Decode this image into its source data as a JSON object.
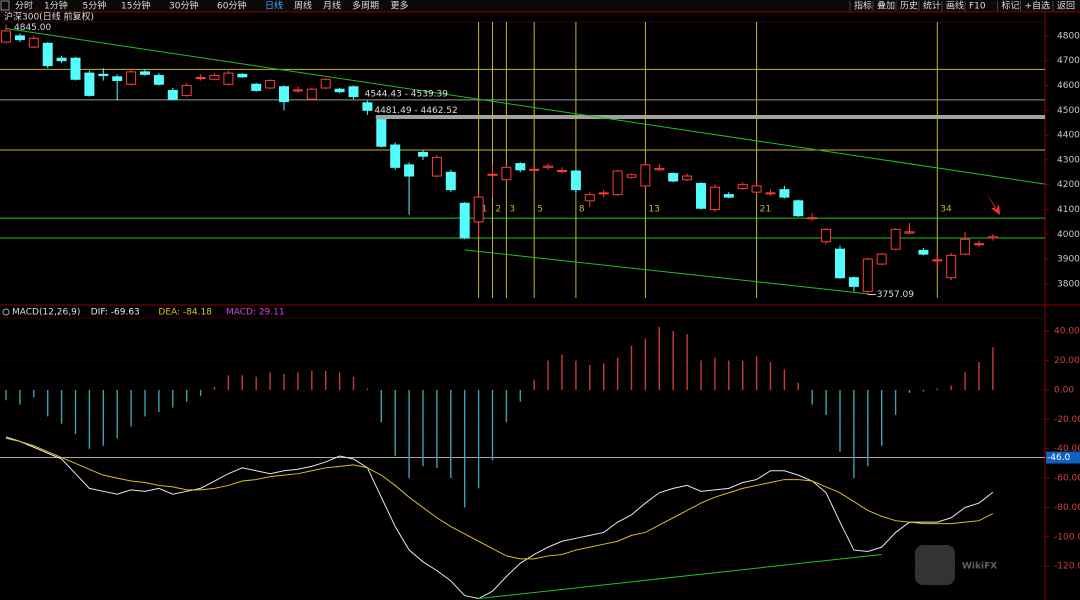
{
  "toolbar": {
    "periods": [
      "分时",
      "1分钟",
      "5分钟",
      "15分钟",
      "30分钟",
      "60分钟",
      "日线",
      "周线",
      "月线",
      "多周期",
      "更多"
    ],
    "active_index": 6,
    "tools": [
      "指标",
      "叠加",
      "历史",
      "统计",
      "画线",
      "F10",
      "标记",
      "+自选",
      "返回"
    ]
  },
  "watermark": "WikiFX",
  "chart_data": [
    {
      "type": "candlestick",
      "title": "沪深300(日线 前复权)",
      "ylim": [
        3727,
        4856
      ],
      "yticks": [
        3800,
        3900,
        4000,
        4100,
        4200,
        4300,
        4400,
        4500,
        4600,
        4700,
        4800
      ],
      "grid": true,
      "up_color": "#ff3c3c",
      "down_color": "#54fcfc",
      "open": [
        4775,
        4800,
        4755,
        4770,
        4710,
        4710,
        4650,
        4645,
        4635,
        4605,
        4655,
        4640,
        4580,
        4560,
        4630,
        4625,
        4605,
        4645,
        4605,
        4590,
        4595,
        4580,
        4545,
        4590,
        4585,
        4595,
        4530,
        4462.52,
        4360,
        4280,
        4330,
        4235,
        4250,
        4125,
        4050,
        4240,
        4220,
        4285,
        4260,
        4270,
        4255,
        4255,
        4135,
        4165,
        4160,
        4230,
        4195,
        4260,
        4245,
        4220,
        4205,
        4100,
        4160,
        4185,
        4170,
        4165,
        4180,
        4135,
        4065,
        3970,
        3940,
        3825,
        3770,
        3880,
        3940,
        4005,
        3935,
        3895,
        3825,
        3920,
        3960,
        3985
      ],
      "high": [
        4845,
        4810,
        4800,
        4775,
        4720,
        4715,
        4660,
        4670,
        4645,
        4665,
        4665,
        4650,
        4590,
        4610,
        4645,
        4650,
        4660,
        4650,
        4610,
        4625,
        4600,
        4595,
        4590,
        4630,
        4590,
        4600,
        4539.39,
        4462.52,
        4370,
        4290,
        4340,
        4320,
        4260,
        4130,
        4165,
        4280,
        4280,
        4290,
        4275,
        4285,
        4270,
        4260,
        4170,
        4180,
        4260,
        4245,
        4285,
        4285,
        4250,
        4245,
        4210,
        4200,
        4170,
        4210,
        4210,
        4180,
        4195,
        4140,
        4085,
        4025,
        3955,
        3830,
        3905,
        3925,
        4025,
        4045,
        3945,
        3920,
        3925,
        4010,
        3975,
        4000
      ],
      "low": [
        4770,
        4775,
        4750,
        4670,
        4690,
        4620,
        4555,
        4620,
        4540,
        4600,
        4640,
        4600,
        4540,
        4555,
        4620,
        4620,
        4600,
        4630,
        4575,
        4585,
        4500,
        4570,
        4540,
        4585,
        4570,
        4544.43,
        4481.49,
        4350,
        4260,
        4080,
        4300,
        4230,
        4170,
        3980,
        3990,
        4150,
        4215,
        4250,
        4250,
        4260,
        4245,
        4170,
        4110,
        4150,
        4155,
        4225,
        4190,
        4255,
        4210,
        4215,
        4100,
        4090,
        4145,
        4180,
        4165,
        4155,
        4145,
        4070,
        4055,
        3960,
        3820,
        3770,
        3757.09,
        3875,
        3935,
        4000,
        3915,
        3870,
        3815,
        3915,
        3950,
        3975
      ],
      "close": [
        4820,
        4785,
        4790,
        4680,
        4700,
        4625,
        4560,
        4640,
        4620,
        4655,
        4645,
        4605,
        4545,
        4600,
        4632,
        4640,
        4650,
        4635,
        4580,
        4620,
        4535,
        4582,
        4585,
        4625,
        4575,
        4555,
        4500,
        4355,
        4270,
        4235,
        4315,
        4310,
        4180,
        3985,
        4150,
        4242,
        4270,
        4260,
        4262,
        4275,
        4257,
        4180,
        4160,
        4167,
        4255,
        4240,
        4280,
        4265,
        4215,
        4235,
        4105,
        4190,
        4150,
        4200,
        4195,
        4167,
        4150,
        4075,
        4067,
        4020,
        3825,
        3790,
        3900,
        3920,
        4020,
        4010,
        3920,
        3897,
        3915,
        3980,
        3962,
        3990
      ],
      "annotations": [
        {
          "value": 4845,
          "label": "4845.00"
        },
        {
          "value": 3757.09,
          "label": "3757.09"
        }
      ],
      "gap_labels": [
        "4544.43 - 4539.39",
        "4481.49 - 4462.52"
      ],
      "fib": [
        1,
        2,
        3,
        5,
        8,
        13,
        21,
        34
      ],
      "fib_color": "#c8b428",
      "hlines": [
        {
          "value": 4665,
          "color": "#c8b428"
        },
        {
          "value": 4542,
          "color": "#9a9a9a"
        },
        {
          "value": 4473,
          "color": "#a0a0a0"
        },
        {
          "value": 4340,
          "color": "#c8b428"
        },
        {
          "value": 4065,
          "color": "#1fbf1f"
        },
        {
          "value": 3985,
          "color": "#1fbf1f"
        }
      ],
      "trendlines": [
        {
          "points": [
            [
              0,
              4830
            ],
            [
              74.7,
              4203
            ]
          ],
          "color": "#1fbf1f"
        },
        {
          "points": [
            [
              33,
              3937
            ],
            [
              62,
              3760
            ]
          ],
          "color": "#1fbf1f"
        }
      ]
    },
    {
      "type": "macd",
      "legend": [
        "MACD(12,26,9)",
        "DIF: -69.63",
        "DEA: -84.18",
        "MACD: 29.11"
      ],
      "ylim": [
        -143,
        49
      ],
      "yticks": [
        {
          "value": 40,
          "label": "40.00"
        },
        {
          "value": 20,
          "label": "20.00"
        },
        {
          "value": 0,
          "label": "0.00"
        },
        {
          "value": -20,
          "label": "-20.00"
        },
        {
          "value": -40,
          "label": "-40.00"
        },
        {
          "value": -60,
          "label": "-60.00"
        },
        {
          "value": -80,
          "label": "-80.00"
        },
        {
          "value": -100,
          "label": "-100.00"
        },
        {
          "value": -120,
          "label": "-120.00"
        }
      ],
      "grid": true,
      "crosshair": {
        "value": -46,
        "label": "-46.0"
      },
      "series": [
        {
          "name": "DIF",
          "color": "#e8e8e8",
          "values": [
            -32,
            -35,
            -39,
            -43,
            -47,
            -57,
            -67,
            -69,
            -71,
            -68,
            -69,
            -67,
            -71,
            -69,
            -67,
            -62,
            -57,
            -53,
            -55,
            -57,
            -55,
            -54,
            -52,
            -49,
            -45,
            -47,
            -53,
            -73,
            -93,
            -109,
            -117,
            -123,
            -130,
            -140,
            -142,
            -137,
            -127,
            -118,
            -112,
            -107,
            -103,
            -101,
            -99,
            -97,
            -90,
            -85,
            -77,
            -70,
            -67,
            -65,
            -69,
            -68,
            -67,
            -63,
            -61,
            -55,
            -55,
            -58,
            -62,
            -70,
            -90,
            -109,
            -110,
            -107,
            -97,
            -90,
            -90,
            -90,
            -87,
            -80,
            -77,
            -69.63
          ]
        },
        {
          "name": "DEA",
          "color": "#d8c020",
          "values": [
            -33,
            -35,
            -38,
            -42,
            -46,
            -50,
            -54,
            -58,
            -60,
            -62,
            -63,
            -65,
            -66,
            -68,
            -68,
            -67,
            -65,
            -62,
            -61,
            -59,
            -58,
            -57,
            -55,
            -53,
            -52,
            -51,
            -53,
            -58,
            -65,
            -73,
            -80,
            -87,
            -93,
            -98,
            -103,
            -108,
            -113,
            -115,
            -115,
            -113,
            -112,
            -109,
            -107,
            -105,
            -103,
            -99,
            -97,
            -92,
            -87,
            -82,
            -77,
            -73,
            -70,
            -67,
            -65,
            -63,
            -61,
            -61,
            -62,
            -66,
            -70,
            -76,
            -82,
            -86,
            -89,
            -90,
            -91,
            -91,
            -91,
            -90,
            -89,
            -84.18
          ]
        },
        {
          "name": "MACD",
          "color": "#e040e0",
          "values": [
            -7,
            -10,
            -5,
            -18,
            -23,
            -30,
            -40,
            -38,
            -33,
            -25,
            -18,
            -15,
            -12,
            -8,
            -4,
            2,
            10,
            10,
            9,
            12,
            11,
            12,
            13,
            13,
            12,
            9,
            1,
            -22,
            -45,
            -60,
            -52,
            -53,
            -60,
            -80,
            -67,
            -48,
            -22,
            -8,
            7,
            20,
            24,
            20,
            17,
            18,
            22,
            30,
            35,
            43,
            40,
            38,
            20,
            22,
            20,
            20,
            23,
            19,
            14,
            5,
            -10,
            -17,
            -42,
            -60,
            -52,
            -38,
            -17,
            -2,
            -1,
            1,
            3,
            12,
            19,
            29.11
          ]
        }
      ],
      "bar_up_color": "#c83c3c",
      "bar_down_color": "#3fa0b0",
      "trendlines": [
        {
          "points": [
            [
              34,
              -142
            ],
            [
              63,
              -112
            ]
          ],
          "color": "#1fbf1f"
        }
      ]
    }
  ]
}
